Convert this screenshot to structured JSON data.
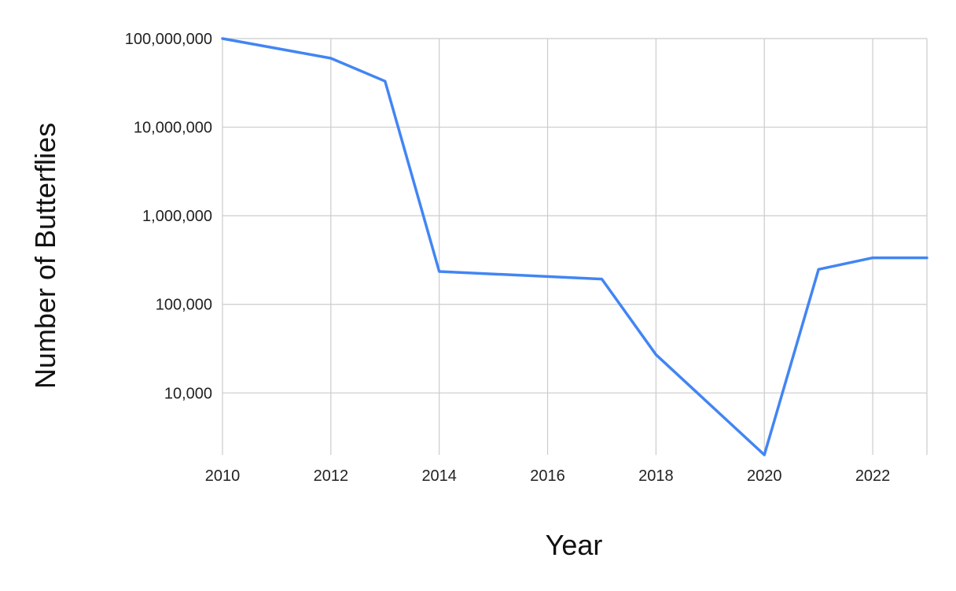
{
  "chart_data": {
    "type": "line",
    "title": "",
    "xlabel": "Year",
    "ylabel": "Number of Butterflies",
    "y_scale": "log",
    "x": [
      2010,
      2012,
      2013,
      2014,
      2017,
      2018,
      2020,
      2021,
      2022,
      2023
    ],
    "series": [
      {
        "color": "#4285F4",
        "values": [
          100000000,
          60000000,
          33000000,
          235000,
          193000,
          27000,
          2000,
          248000,
          335000,
          335000
        ]
      }
    ],
    "xlim": [
      2010,
      2023
    ],
    "ylim": [
      2000,
      100000000
    ],
    "x_ticks": [
      2010,
      2012,
      2014,
      2016,
      2018,
      2020,
      2022
    ],
    "x_tick_labels": [
      "2010",
      "2012",
      "2014",
      "2016",
      "2018",
      "2020",
      "2022"
    ],
    "y_ticks": [
      10000,
      100000,
      1000000,
      10000000,
      100000000
    ],
    "y_tick_labels": [
      "10,000",
      "100,000",
      "1,000,000",
      "10,000,000",
      "100,000,000"
    ],
    "grid": true,
    "legend": "none"
  }
}
